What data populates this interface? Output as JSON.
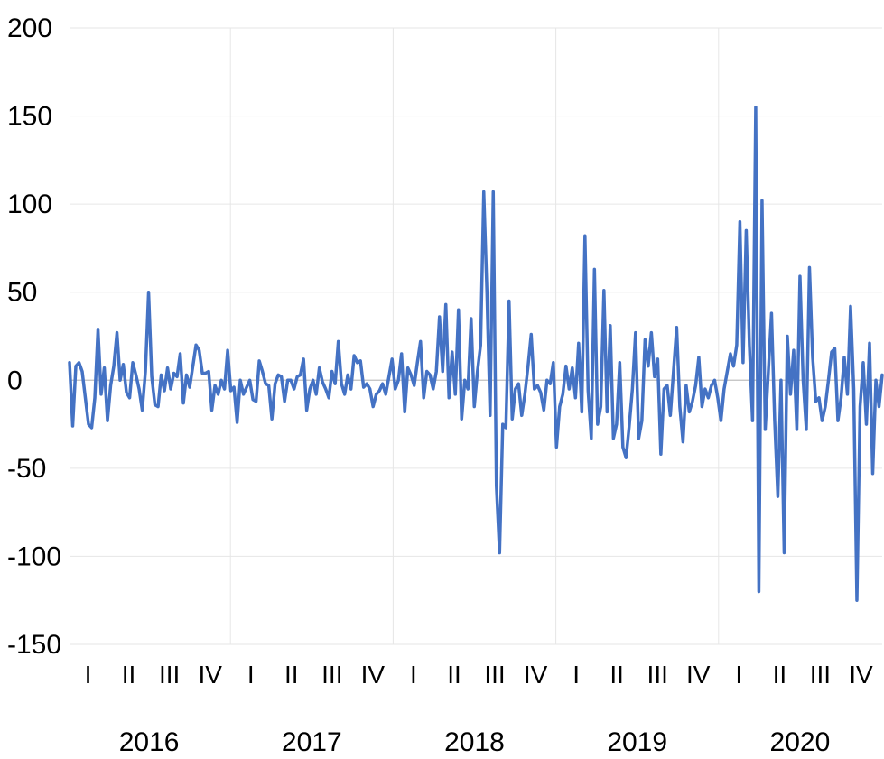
{
  "chart_data": {
    "type": "line",
    "title": "",
    "xlabel": "",
    "ylabel": "",
    "ylim": [
      -150,
      200
    ],
    "yticks": [
      "200",
      "150",
      "100",
      "50",
      "0",
      "-50",
      "-100",
      "-150"
    ],
    "grid": true,
    "legend": "none",
    "years": [
      "2016",
      "2017",
      "2018",
      "2019",
      "2020"
    ],
    "quarters": [
      "I",
      "II",
      "III",
      "IV"
    ],
    "series": [
      {
        "color": "#4472c4",
        "values": [
          10,
          -26,
          8,
          10,
          5,
          -10,
          -25,
          -27,
          -10,
          29,
          -8,
          7,
          -23,
          -3,
          8,
          27,
          0,
          9,
          -7,
          -10,
          10,
          3,
          -5,
          -17,
          5,
          50,
          2,
          -14,
          -15,
          3,
          -6,
          7,
          -5,
          4,
          2,
          15,
          -13,
          3,
          -4,
          8,
          20,
          17,
          4,
          4,
          5,
          -17,
          -3,
          -8,
          0,
          -5,
          17,
          -6,
          -4,
          -24,
          0,
          -8,
          -4,
          0,
          -11,
          -12,
          11,
          5,
          -2,
          -3,
          -22,
          -2,
          3,
          2,
          -12,
          0,
          0,
          -5,
          2,
          3,
          12,
          -17,
          -5,
          0,
          -8,
          7,
          -1,
          -5,
          -10,
          5,
          -2,
          22,
          -2,
          -8,
          3,
          -5,
          14,
          10,
          11,
          -4,
          -2,
          -5,
          -15,
          -8,
          -6,
          -2,
          -8,
          2,
          12,
          -5,
          0,
          15,
          -18,
          7,
          3,
          -3,
          10,
          22,
          -10,
          5,
          3,
          -5,
          5,
          36,
          5,
          43,
          -10,
          16,
          -8,
          40,
          -22,
          0,
          -5,
          35,
          -15,
          5,
          20,
          107,
          50,
          -20,
          107,
          -60,
          -98,
          -25,
          -27,
          45,
          -22,
          -5,
          -2,
          -20,
          -8,
          8,
          26,
          -5,
          -3,
          -7,
          -17,
          0,
          -2,
          10,
          -38,
          -15,
          -8,
          8,
          -5,
          7,
          -10,
          21,
          -18,
          82,
          -6,
          -33,
          63,
          -25,
          -15,
          51,
          -18,
          31,
          -33,
          -25,
          10,
          -38,
          -44,
          -26,
          -5,
          27,
          -33,
          -23,
          23,
          8,
          27,
          2,
          12,
          -42,
          -5,
          -3,
          -20,
          5,
          30,
          -15,
          -35,
          -3,
          -18,
          -12,
          -3,
          13,
          -15,
          -5,
          -10,
          -3,
          0,
          -10,
          -23,
          -5,
          5,
          15,
          8,
          20,
          90,
          10,
          85,
          20,
          -23,
          155,
          -120,
          102,
          -28,
          5,
          38,
          -23,
          -66,
          0,
          -98,
          25,
          -8,
          17,
          -28,
          59,
          0,
          -28,
          64,
          13,
          -12,
          -10,
          -23,
          -15,
          0,
          16,
          18,
          -23,
          -10,
          13,
          -8,
          42,
          -5,
          -125,
          -15,
          10,
          -25,
          21,
          -53,
          0,
          -15,
          3
        ]
      }
    ]
  }
}
